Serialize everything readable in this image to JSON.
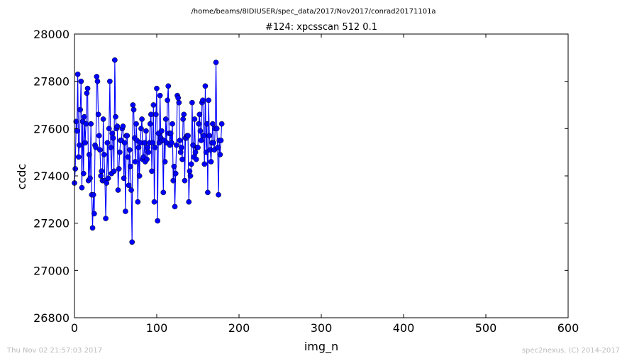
{
  "header": {
    "path": "/home/beams/8IDIUSER/spec_data/2017/Nov2017/conrad20171101a"
  },
  "footer": {
    "timestamp": "Thu Nov 02 21:57:03 2017",
    "credit": "spec2nexus, (C) 2014-2017"
  },
  "colors": {
    "series": "#0000ff",
    "marker_edge": "#000000",
    "footer_text": "#bbbbbb"
  },
  "chart_data": {
    "type": "line",
    "title": "#124: xpcsscan 512 0.1",
    "xlabel": "img_n",
    "ylabel": "ccdc",
    "xlim": [
      0,
      600
    ],
    "ylim": [
      26800,
      28000
    ],
    "xticks": [
      0,
      100,
      200,
      300,
      400,
      500,
      600
    ],
    "yticks": [
      26800,
      27000,
      27200,
      27400,
      27600,
      27800,
      28000
    ],
    "grid": false,
    "legend": "none",
    "marker": "circle",
    "series": [
      {
        "x_start": 0,
        "x_step": 1,
        "values": [
          27370,
          27430,
          27630,
          27590,
          27830,
          27480,
          27530,
          27680,
          27800,
          27350,
          27630,
          27410,
          27650,
          27540,
          27620,
          27750,
          27770,
          27380,
          27490,
          27390,
          27620,
          27320,
          27180,
          27320,
          27240,
          27530,
          27520,
          27820,
          27800,
          27660,
          27570,
          27510,
          27400,
          27420,
          27380,
          27640,
          27490,
          27380,
          27220,
          27370,
          27540,
          27390,
          27600,
          27800,
          27520,
          27410,
          27580,
          27560,
          27420,
          27890,
          27650,
          27600,
          27610,
          27340,
          27430,
          27500,
          27550,
          27550,
          27600,
          27610,
          27390,
          27540,
          27250,
          27570,
          27570,
          27480,
          27360,
          27510,
          27440,
          27340,
          27120,
          27700,
          27680,
          27560,
          27460,
          27620,
          27550,
          27290,
          27520,
          27400,
          27540,
          27600,
          27640,
          27470,
          27480,
          27540,
          27460,
          27590,
          27470,
          27520,
          27500,
          27540,
          27620,
          27660,
          27420,
          27540,
          27700,
          27290,
          27520,
          27660,
          27770,
          27210,
          27580,
          27540,
          27740,
          27560,
          27590,
          27550,
          27330,
          27550,
          27460,
          27640,
          27540,
          27720,
          27780,
          27580,
          27530,
          27580,
          27540,
          27620,
          27380,
          27440,
          27270,
          27410,
          27530,
          27740,
          27730,
          27710,
          27550,
          27500,
          27520,
          27470,
          27640,
          27660,
          27380,
          27560,
          27560,
          27570,
          27570,
          27290,
          27420,
          27400,
          27450,
          27710,
          27530,
          27480,
          27640,
          27500,
          27470,
          27520,
          27520,
          27620,
          27660,
          27590,
          27550,
          27710,
          27720,
          27570,
          27450,
          27780,
          27500,
          27620,
          27330,
          27720,
          27570,
          27510,
          27460,
          27540,
          27620,
          27540,
          27510,
          27600,
          27880,
          27600,
          27520,
          27320,
          27550,
          27490,
          27550,
          27620
        ]
      }
    ]
  }
}
